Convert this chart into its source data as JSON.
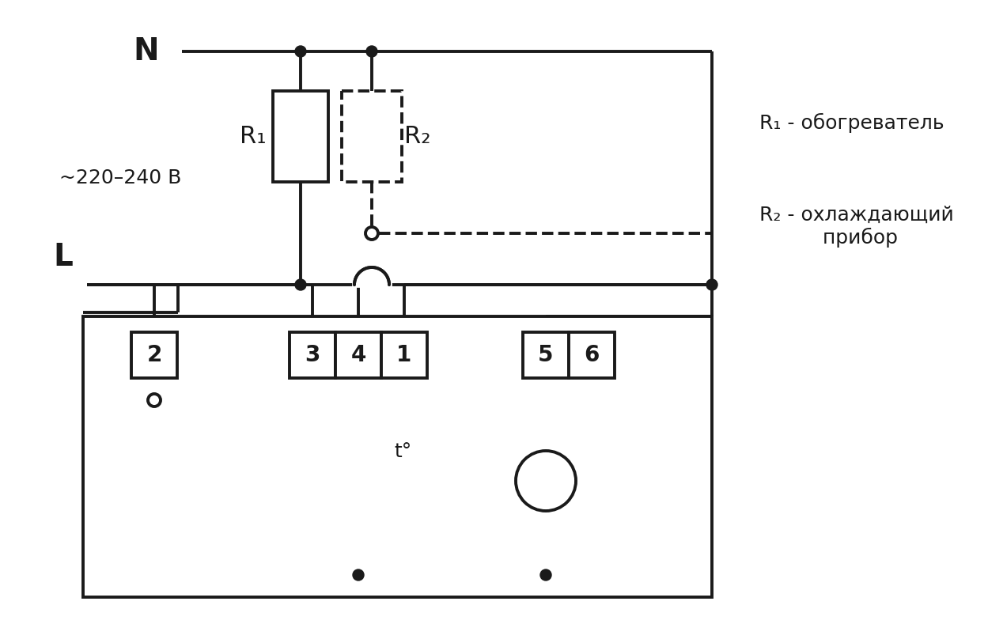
{
  "bg_color": "#ffffff",
  "lc": "#1a1a1a",
  "lw": 2.2,
  "lw2": 2.8,
  "fig_w": 12.49,
  "fig_h": 7.89,
  "label_N": "N",
  "label_L": "L",
  "label_voltage": "~220–240 В",
  "label_R1": "R₁",
  "label_R2": "R₂",
  "label_R1_desc": "R₁ - обогреватель",
  "label_R2_desc": "R₂ - охлаждающий\n          прибор",
  "label_t": "t°",
  "term2": "2",
  "term3": "3",
  "term4": "4",
  "term1": "1",
  "term5": "5",
  "term6": "6"
}
